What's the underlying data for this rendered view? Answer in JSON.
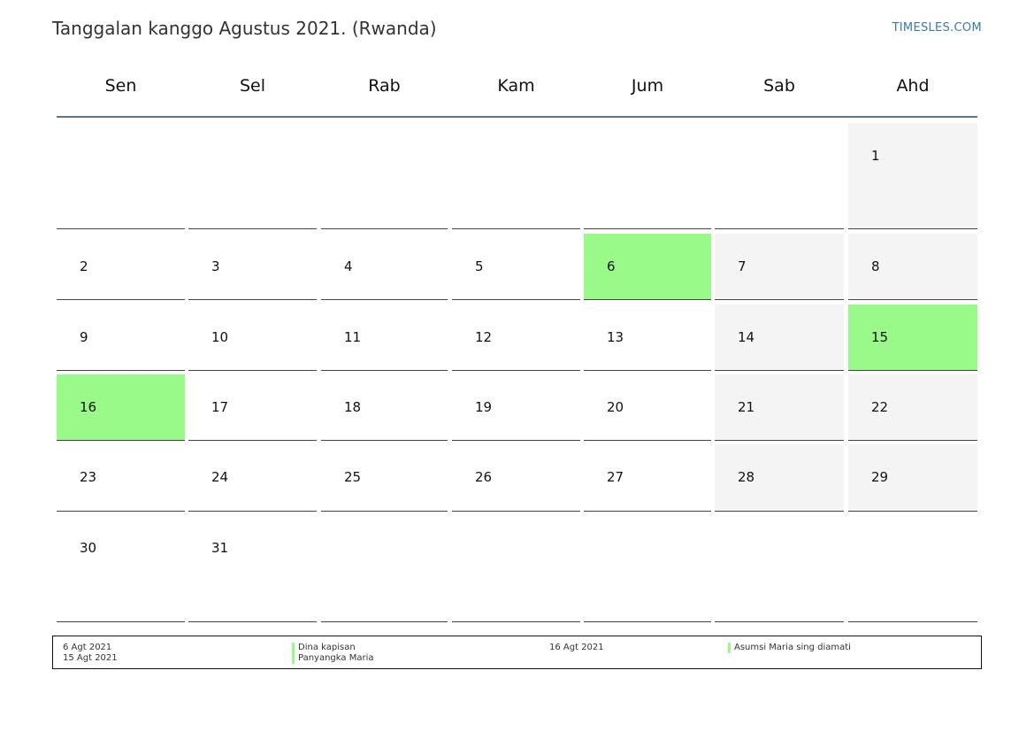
{
  "title": "Tanggalan kanggo Agustus 2021. (Rwanda)",
  "brand": "TIMESLES.COM",
  "weekdays": [
    "Sen",
    "Sel",
    "Rab",
    "Kam",
    "Jum",
    "Sab",
    "Ahd"
  ],
  "colors": {
    "holiday": "#99fa8a",
    "weekend": "#f4f4f4",
    "header_rule": "#5a7796",
    "brand": "#3a78b8"
  },
  "weeks": [
    [
      null,
      null,
      null,
      null,
      null,
      null,
      "1"
    ],
    [
      "2",
      "3",
      "4",
      "5",
      "6",
      "7",
      "8"
    ],
    [
      "9",
      "10",
      "11",
      "12",
      "13",
      "14",
      "15"
    ],
    [
      "16",
      "17",
      "18",
      "19",
      "20",
      "21",
      "22"
    ],
    [
      "23",
      "24",
      "25",
      "26",
      "27",
      "28",
      "29"
    ],
    [
      "30",
      "31",
      null,
      null,
      null,
      null,
      null
    ]
  ],
  "holiday_days": [
    "6",
    "15",
    "16"
  ],
  "legend": {
    "col1": [
      "6 Agt 2021",
      "15 Agt 2021"
    ],
    "col2": [
      "Dina kapisan",
      "Panyangka Maria"
    ],
    "col3": [
      "16 Agt 2021"
    ],
    "col4": [
      "Asumsi Maria sing diamati"
    ]
  }
}
